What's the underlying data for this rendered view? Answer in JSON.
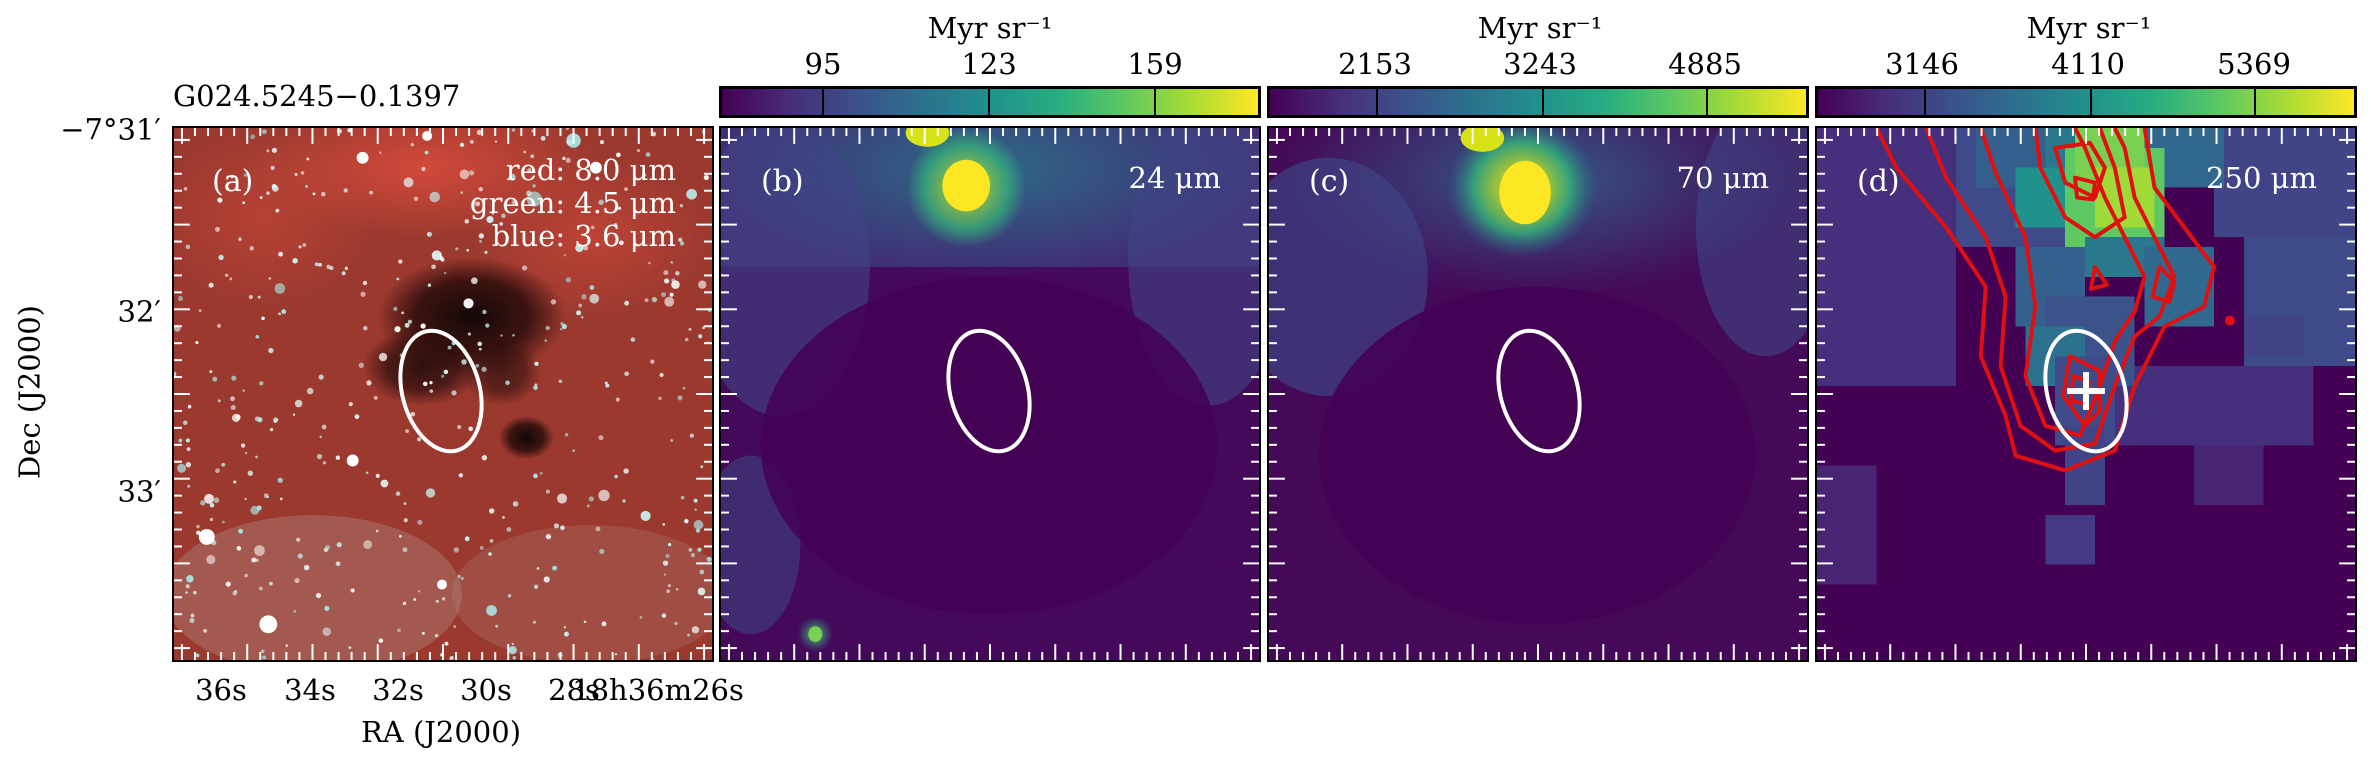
{
  "source_title": "G024.5245−0.1397",
  "axes": {
    "ylabel": "Dec (J2000)",
    "xlabel": "RA (J2000)",
    "yticks": [
      "−7°31′",
      "32′",
      "33′"
    ],
    "xticks": [
      "36s",
      "34s",
      "32s",
      "30s",
      "28s",
      "18h36m26s"
    ]
  },
  "panels": [
    {
      "label": "(a)",
      "legend": [
        "red: 8.0 μm",
        "green: 4.5 μm",
        "blue: 3.6 μm"
      ]
    },
    {
      "label": "(b)",
      "wavelength": "24 μm",
      "colorbar": {
        "unit": "Myr sr⁻¹",
        "ticks": [
          "95",
          "123",
          "159"
        ]
      }
    },
    {
      "label": "(c)",
      "wavelength": "70 μm",
      "colorbar": {
        "unit": "Myr sr⁻¹",
        "ticks": [
          "2153",
          "3243",
          "4885"
        ]
      }
    },
    {
      "label": "(d)",
      "wavelength": "250 μm",
      "colorbar": {
        "unit": "Myr sr⁻¹",
        "ticks": [
          "3146",
          "4110",
          "5369"
        ]
      }
    }
  ],
  "colors": {
    "ellipse": "#ffffff",
    "contour": "#e01010",
    "cmap_low": "#440154",
    "cmap_high": "#fde725",
    "rgb_background": "#a63a2c"
  },
  "colormap": "viridis",
  "marker": "cross"
}
